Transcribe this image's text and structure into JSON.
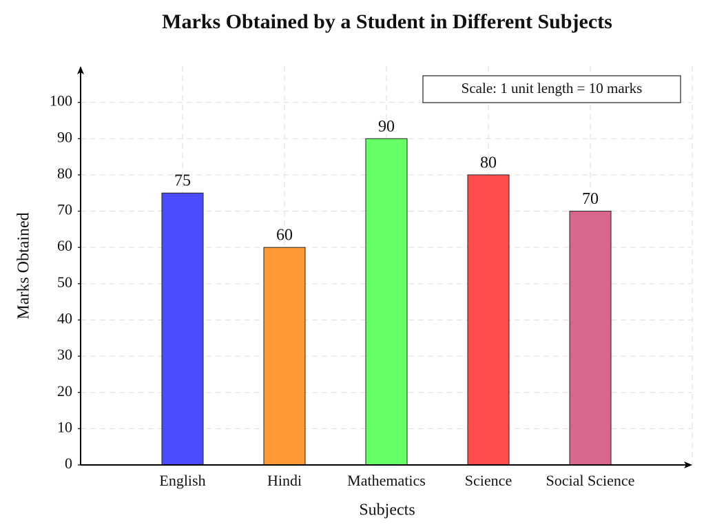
{
  "chart_data": {
    "type": "bar",
    "title": "Marks Obtained by a Student in Different Subjects",
    "x_label": "Subjects",
    "y_label": "Marks Obtained",
    "annotation": "Scale: 1 unit length = 10 marks",
    "categories": [
      "English",
      "Hindi",
      "Mathematics",
      "Science",
      "Social Science"
    ],
    "values": [
      75,
      60,
      90,
      80,
      70
    ],
    "colors": [
      "#4b4bff",
      "#ff9933",
      "#66ff66",
      "#ff4d4d",
      "#d9668c"
    ],
    "ylim": [
      0,
      110
    ],
    "yticks": [
      0,
      10,
      20,
      30,
      40,
      50,
      60,
      70,
      80,
      90,
      100
    ],
    "grid": true
  }
}
